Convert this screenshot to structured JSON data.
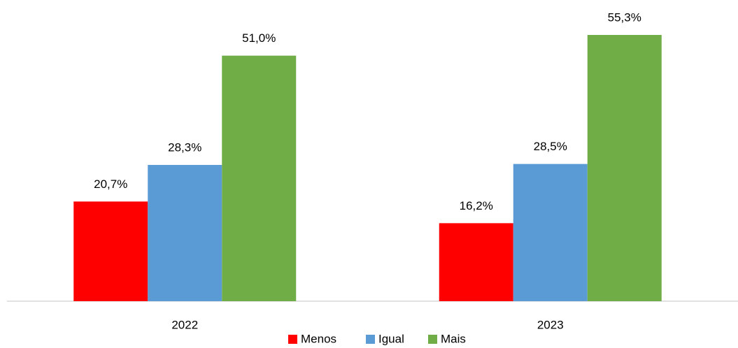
{
  "chart_data": {
    "type": "bar",
    "categories": [
      "2022",
      "2023"
    ],
    "series": [
      {
        "name": "Menos",
        "color": "#ff0000",
        "values": [
          20.7,
          16.2
        ],
        "value_labels": [
          "20,7%",
          "16,2%"
        ]
      },
      {
        "name": "Igual",
        "color": "#5b9bd5",
        "values": [
          28.3,
          28.5
        ],
        "value_labels": [
          "28,3%",
          "28,5%"
        ]
      },
      {
        "name": "Mais",
        "color": "#70ad47",
        "values": [
          51.0,
          55.3
        ],
        "value_labels": [
          "51,0%",
          "55,3%"
        ]
      }
    ],
    "legend": "bottom"
  }
}
